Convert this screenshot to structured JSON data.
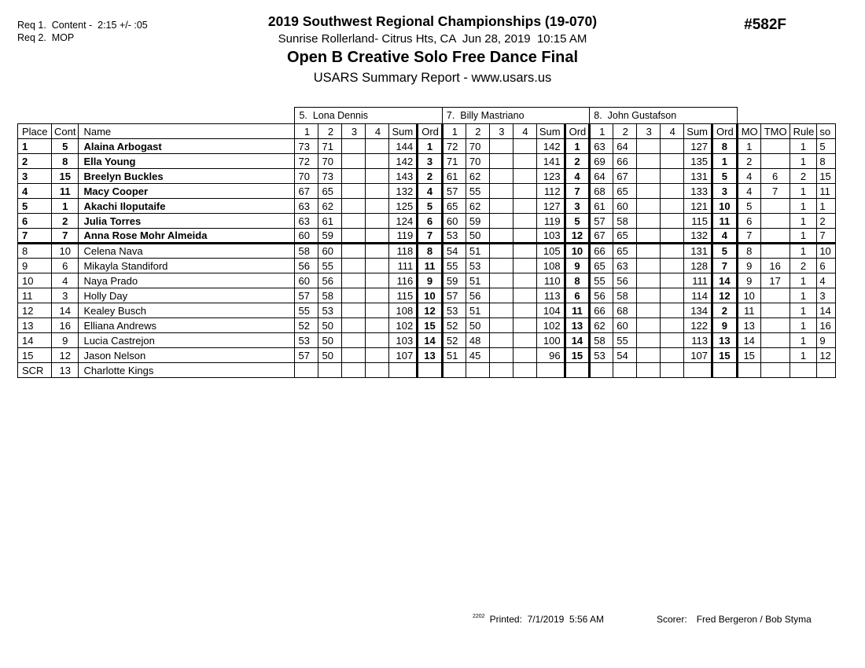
{
  "header": {
    "req1": "Req 1.  Content -  2:15 +/- :05",
    "req2": "Req 2.  MOP",
    "title": "2019 Southwest Regional Championships (19-070)",
    "venue": "Sunrise Rollerland- Citrus Hts, CA  Jun 28, 2019  10:15 AM",
    "event": "Open B Creative Solo Free Dance Final",
    "report": "USARS Summary Report - www.usars.us",
    "code": "#582F"
  },
  "table": {
    "judges": [
      "5.  Lona Dennis",
      "7.  Billy Mastriano",
      "8.  John Gustafson"
    ],
    "col_headers": {
      "place": "Place",
      "cont": "Cont",
      "name": "Name",
      "judge_cols": [
        "1",
        "2",
        "3",
        "4",
        "Sum",
        "Ord"
      ],
      "extra_cols": [
        "MO",
        "TMO",
        "Rule",
        "so"
      ]
    },
    "rows": [
      {
        "place": "1",
        "cont": "5",
        "name": "Alaina Arbogast",
        "bold": true,
        "sep": false,
        "judges": [
          [
            "73",
            "71",
            "",
            "",
            "144",
            "1"
          ],
          [
            "72",
            "70",
            "",
            "",
            "142",
            "1"
          ],
          [
            "63",
            "64",
            "",
            "",
            "127",
            "8"
          ]
        ],
        "mo": "1",
        "tmo": "",
        "rule": "1",
        "so": "5"
      },
      {
        "place": "2",
        "cont": "8",
        "name": "Ella Young",
        "bold": true,
        "sep": false,
        "judges": [
          [
            "72",
            "70",
            "",
            "",
            "142",
            "3"
          ],
          [
            "71",
            "70",
            "",
            "",
            "141",
            "2"
          ],
          [
            "69",
            "66",
            "",
            "",
            "135",
            "1"
          ]
        ],
        "mo": "2",
        "tmo": "",
        "rule": "1",
        "so": "8"
      },
      {
        "place": "3",
        "cont": "15",
        "name": "Breelyn Buckles",
        "bold": true,
        "sep": false,
        "judges": [
          [
            "70",
            "73",
            "",
            "",
            "143",
            "2"
          ],
          [
            "61",
            "62",
            "",
            "",
            "123",
            "4"
          ],
          [
            "64",
            "67",
            "",
            "",
            "131",
            "5"
          ]
        ],
        "mo": "4",
        "tmo": "6",
        "rule": "2",
        "so": "15"
      },
      {
        "place": "4",
        "cont": "11",
        "name": "Macy Cooper",
        "bold": true,
        "sep": false,
        "judges": [
          [
            "67",
            "65",
            "",
            "",
            "132",
            "4"
          ],
          [
            "57",
            "55",
            "",
            "",
            "112",
            "7"
          ],
          [
            "68",
            "65",
            "",
            "",
            "133",
            "3"
          ]
        ],
        "mo": "4",
        "tmo": "7",
        "rule": "1",
        "so": "11"
      },
      {
        "place": "5",
        "cont": "1",
        "name": "Akachi Iloputaife",
        "bold": true,
        "sep": false,
        "judges": [
          [
            "63",
            "62",
            "",
            "",
            "125",
            "5"
          ],
          [
            "65",
            "62",
            "",
            "",
            "127",
            "3"
          ],
          [
            "61",
            "60",
            "",
            "",
            "121",
            "10"
          ]
        ],
        "mo": "5",
        "tmo": "",
        "rule": "1",
        "so": "1"
      },
      {
        "place": "6",
        "cont": "2",
        "name": "Julia Torres",
        "bold": true,
        "sep": false,
        "judges": [
          [
            "63",
            "61",
            "",
            "",
            "124",
            "6"
          ],
          [
            "60",
            "59",
            "",
            "",
            "119",
            "5"
          ],
          [
            "57",
            "58",
            "",
            "",
            "115",
            "11"
          ]
        ],
        "mo": "6",
        "tmo": "",
        "rule": "1",
        "so": "2"
      },
      {
        "place": "7",
        "cont": "7",
        "name": "Anna Rose Mohr Almeida",
        "bold": true,
        "sep": true,
        "judges": [
          [
            "60",
            "59",
            "",
            "",
            "119",
            "7"
          ],
          [
            "53",
            "50",
            "",
            "",
            "103",
            "12"
          ],
          [
            "67",
            "65",
            "",
            "",
            "132",
            "4"
          ]
        ],
        "mo": "7",
        "tmo": "",
        "rule": "1",
        "so": "7"
      },
      {
        "place": "8",
        "cont": "10",
        "name": "Celena Nava",
        "bold": false,
        "sep": false,
        "judges": [
          [
            "58",
            "60",
            "",
            "",
            "118",
            "8"
          ],
          [
            "54",
            "51",
            "",
            "",
            "105",
            "10"
          ],
          [
            "66",
            "65",
            "",
            "",
            "131",
            "5"
          ]
        ],
        "mo": "8",
        "tmo": "",
        "rule": "1",
        "so": "10"
      },
      {
        "place": "9",
        "cont": "6",
        "name": "Mikayla Standiford",
        "bold": false,
        "sep": false,
        "judges": [
          [
            "56",
            "55",
            "",
            "",
            "111",
            "11"
          ],
          [
            "55",
            "53",
            "",
            "",
            "108",
            "9"
          ],
          [
            "65",
            "63",
            "",
            "",
            "128",
            "7"
          ]
        ],
        "mo": "9",
        "tmo": "16",
        "rule": "2",
        "so": "6"
      },
      {
        "place": "10",
        "cont": "4",
        "name": "Naya Prado",
        "bold": false,
        "sep": false,
        "judges": [
          [
            "60",
            "56",
            "",
            "",
            "116",
            "9"
          ],
          [
            "59",
            "51",
            "",
            "",
            "110",
            "8"
          ],
          [
            "55",
            "56",
            "",
            "",
            "111",
            "14"
          ]
        ],
        "mo": "9",
        "tmo": "17",
        "rule": "1",
        "so": "4"
      },
      {
        "place": "11",
        "cont": "3",
        "name": "Holly Day",
        "bold": false,
        "sep": false,
        "judges": [
          [
            "57",
            "58",
            "",
            "",
            "115",
            "10"
          ],
          [
            "57",
            "56",
            "",
            "",
            "113",
            "6"
          ],
          [
            "56",
            "58",
            "",
            "",
            "114",
            "12"
          ]
        ],
        "mo": "10",
        "tmo": "",
        "rule": "1",
        "so": "3"
      },
      {
        "place": "12",
        "cont": "14",
        "name": "Kealey Busch",
        "bold": false,
        "sep": false,
        "judges": [
          [
            "55",
            "53",
            "",
            "",
            "108",
            "12"
          ],
          [
            "53",
            "51",
            "",
            "",
            "104",
            "11"
          ],
          [
            "66",
            "68",
            "",
            "",
            "134",
            "2"
          ]
        ],
        "mo": "11",
        "tmo": "",
        "rule": "1",
        "so": "14"
      },
      {
        "place": "13",
        "cont": "16",
        "name": "Elliana Andrews",
        "bold": false,
        "sep": false,
        "judges": [
          [
            "52",
            "50",
            "",
            "",
            "102",
            "15"
          ],
          [
            "52",
            "50",
            "",
            "",
            "102",
            "13"
          ],
          [
            "62",
            "60",
            "",
            "",
            "122",
            "9"
          ]
        ],
        "mo": "13",
        "tmo": "",
        "rule": "1",
        "so": "16"
      },
      {
        "place": "14",
        "cont": "9",
        "name": "Lucia Castrejon",
        "bold": false,
        "sep": false,
        "judges": [
          [
            "53",
            "50",
            "",
            "",
            "103",
            "14"
          ],
          [
            "52",
            "48",
            "",
            "",
            "100",
            "14"
          ],
          [
            "58",
            "55",
            "",
            "",
            "113",
            "13"
          ]
        ],
        "mo": "14",
        "tmo": "",
        "rule": "1",
        "so": "9"
      },
      {
        "place": "15",
        "cont": "12",
        "name": "Jason Nelson",
        "bold": false,
        "sep": false,
        "judges": [
          [
            "57",
            "50",
            "",
            "",
            "107",
            "13"
          ],
          [
            "51",
            "45",
            "",
            "",
            "96",
            "15"
          ],
          [
            "53",
            "54",
            "",
            "",
            "107",
            "15"
          ]
        ],
        "mo": "15",
        "tmo": "",
        "rule": "1",
        "so": "12"
      },
      {
        "place": "SCR",
        "cont": "13",
        "name": "Charlotte Kings",
        "bold": false,
        "sep": false,
        "judges": [
          [
            "",
            "",
            "",
            "",
            "",
            ""
          ],
          [
            "",
            "",
            "",
            "",
            "",
            ""
          ],
          [
            "",
            "",
            "",
            "",
            "",
            ""
          ]
        ],
        "mo": "",
        "tmo": "",
        "rule": "",
        "so": ""
      }
    ]
  },
  "footer": {
    "super": "2202",
    "printed": "Printed:  7/1/2019  5:56 AM",
    "scorer_label": "Scorer:",
    "scorer_names": "Fred Bergeron / Bob Styma"
  }
}
